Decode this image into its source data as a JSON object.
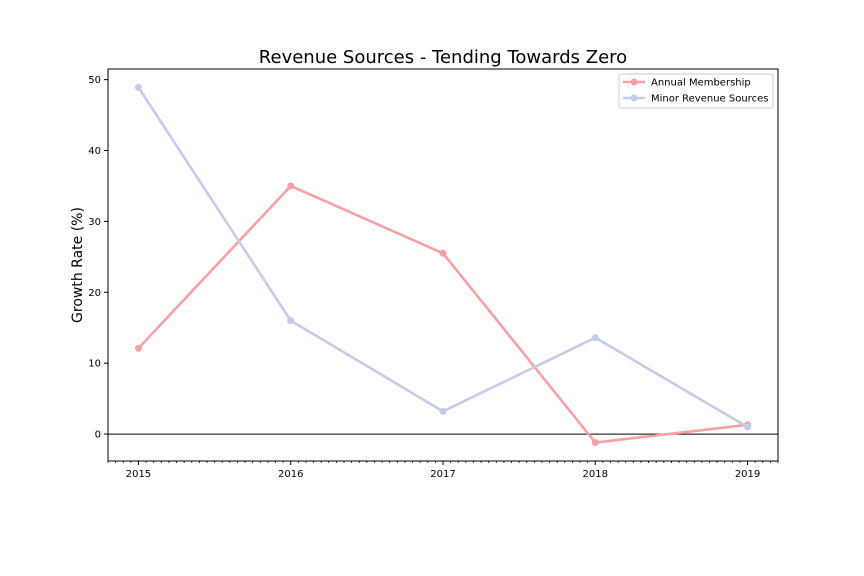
{
  "chart_data": {
    "type": "line",
    "title": "Revenue Sources - Tending Towards Zero",
    "xlabel": "",
    "ylabel": "Growth Rate (%)",
    "x": [
      2015,
      2016,
      2017,
      2018,
      2019
    ],
    "x_tick_labels": [
      "2015",
      "2016",
      "2017",
      "2018",
      "2019"
    ],
    "y_ticks": [
      0,
      10,
      20,
      30,
      40,
      50
    ],
    "y_tick_labels": [
      "0",
      "10",
      "20",
      "30",
      "40",
      "50"
    ],
    "xlim": [
      2014.8,
      2019.2
    ],
    "ylim": [
      -3.8,
      51.5
    ],
    "grid": false,
    "legend_position": "top-right",
    "zero_line": true,
    "series": [
      {
        "name": "Annual Membership",
        "color": "#f7a1a7",
        "values": [
          12.1,
          35.0,
          25.5,
          -1.2,
          1.3
        ]
      },
      {
        "name": "Minor Revenue Sources",
        "color": "#c5cce8",
        "values": [
          48.9,
          16.0,
          3.2,
          13.6,
          1.0
        ]
      }
    ]
  }
}
